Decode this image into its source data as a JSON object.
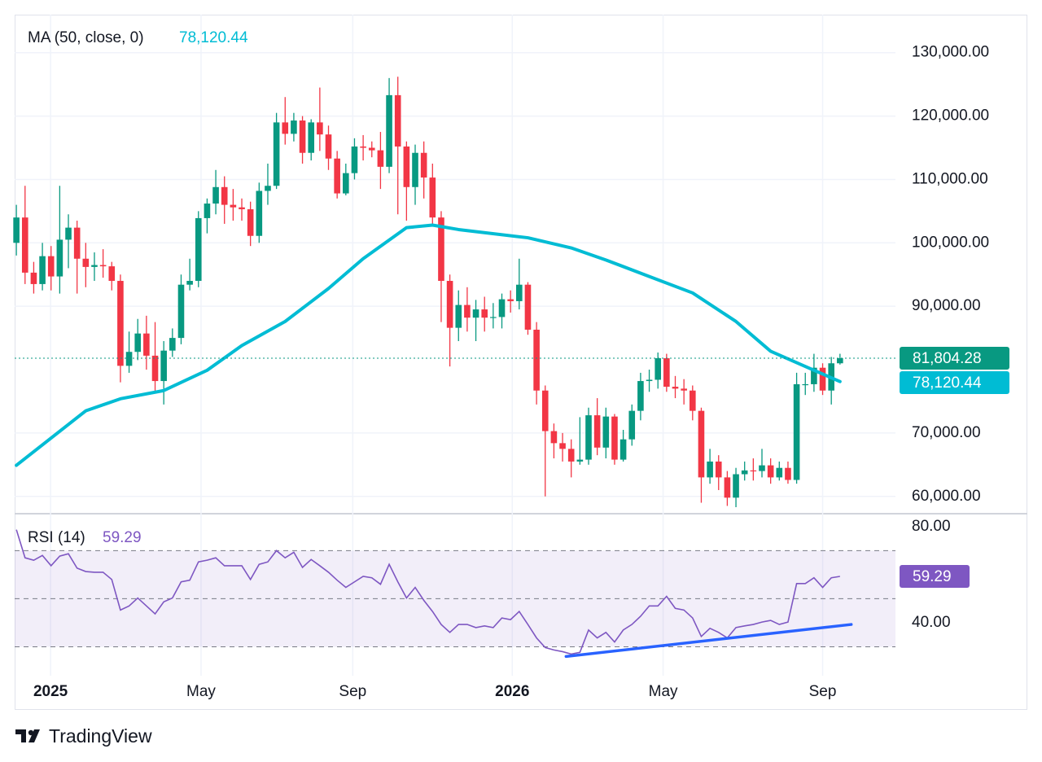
{
  "chart_data": {
    "type": "candlestick",
    "brand": "TradingView",
    "x": [
      0,
      1,
      2,
      3,
      4,
      5,
      6,
      7,
      8,
      9,
      10,
      11,
      12,
      13,
      14,
      15,
      16,
      17,
      18,
      19,
      20,
      21,
      22,
      23,
      24,
      25,
      26,
      27,
      28,
      29,
      30,
      31,
      32,
      33,
      34,
      35,
      36,
      37,
      38,
      39,
      40,
      41,
      42,
      43,
      44,
      45,
      46,
      47,
      48,
      49,
      50,
      51,
      52,
      53,
      54,
      55,
      56,
      57,
      58,
      59,
      60,
      61,
      62,
      63,
      64,
      65,
      66,
      67,
      68,
      69,
      70,
      71,
      72,
      73,
      74,
      75,
      76,
      77,
      78,
      79,
      80,
      81,
      82,
      83,
      84,
      85,
      86,
      87,
      88,
      89,
      90,
      91,
      92,
      93,
      94,
      95
    ],
    "open": [
      100000,
      104000,
      95300,
      93500,
      97900,
      94700,
      100500,
      102400,
      97500,
      96200,
      96500,
      96300,
      94000,
      80600,
      82800,
      85700,
      82200,
      78200,
      83000,
      85000,
      93400,
      94000,
      103900,
      106200,
      108800,
      106000,
      105600,
      105300,
      101100,
      108200,
      109000,
      119000,
      117200,
      119300,
      114200,
      119000,
      117100,
      113300,
      107800,
      111000,
      115200,
      115000,
      114600,
      112000,
      123300,
      115200,
      108800,
      114200,
      110300,
      104000,
      94000,
      86600,
      90200,
      88200,
      89500,
      88200,
      88300,
      91100,
      90800,
      93400,
      86300,
      76700,
      70300,
      68400,
      67500,
      65500,
      65800,
      72800,
      67700,
      72600,
      65800,
      69000,
      73500,
      78200,
      78400,
      81800,
      77300,
      77000,
      76700,
      73500,
      63000,
      65500,
      63000,
      59800,
      63500,
      64100,
      64000,
      64900,
      63000,
      64500,
      62600,
      77700,
      77700,
      80300,
      76700,
      81000
    ],
    "high": [
      106000,
      109000,
      97000,
      100000,
      99500,
      109000,
      104500,
      103500,
      100000,
      98500,
      99000,
      97000,
      95000,
      86000,
      88000,
      88500,
      87500,
      84500,
      86500,
      95000,
      97500,
      105000,
      107000,
      111500,
      110500,
      108500,
      107000,
      106500,
      109500,
      112500,
      120500,
      123000,
      120500,
      120000,
      119500,
      124500,
      118500,
      114500,
      112500,
      116500,
      117000,
      116000,
      117500,
      126000,
      126200,
      116000,
      115500,
      116000,
      112500,
      105000,
      95000,
      92500,
      93000,
      91000,
      91500,
      90500,
      92000,
      92500,
      97500,
      93800,
      87500,
      77500,
      71500,
      70000,
      69000,
      72500,
      74000,
      75500,
      74000,
      73000,
      70500,
      74500,
      79500,
      80000,
      82700,
      82500,
      79000,
      78500,
      77500,
      74000,
      67500,
      66500,
      64000,
      64500,
      65500,
      66000,
      67500,
      66000,
      65500,
      65500,
      79500,
      79500,
      82500,
      81000,
      82000,
      82500
    ],
    "low": [
      98000,
      93500,
      92000,
      92500,
      92500,
      92000,
      96000,
      92000,
      93000,
      94000,
      94500,
      92500,
      78000,
      79500,
      81500,
      80000,
      76500,
      74500,
      82000,
      84000,
      92500,
      93000,
      101500,
      104500,
      103000,
      103500,
      103500,
      99500,
      100000,
      106000,
      108500,
      115500,
      116000,
      112500,
      113000,
      114500,
      111500,
      107000,
      107500,
      110000,
      113000,
      113500,
      108500,
      111000,
      104500,
      103500,
      106000,
      107000,
      103000,
      87500,
      80500,
      84500,
      86000,
      84500,
      86000,
      86500,
      86500,
      89000,
      89500,
      85500,
      74500,
      60000,
      66000,
      65500,
      63000,
      65000,
      65000,
      66500,
      66000,
      65000,
      65500,
      68000,
      72000,
      76500,
      77000,
      76500,
      75500,
      74500,
      72000,
      59000,
      62000,
      61000,
      58500,
      58300,
      62500,
      62500,
      63000,
      62000,
      62500,
      62000,
      62000,
      76000,
      76500,
      76000,
      74500,
      80800
    ],
    "close": [
      104000,
      95300,
      93500,
      97900,
      94700,
      100500,
      102400,
      97500,
      96200,
      96500,
      96300,
      94000,
      80600,
      82800,
      85700,
      82200,
      78200,
      83000,
      85000,
      93400,
      94000,
      103900,
      106200,
      108800,
      106000,
      105600,
      105300,
      101100,
      108200,
      109000,
      119000,
      117200,
      119300,
      114200,
      119000,
      117100,
      113300,
      107800,
      111000,
      115200,
      115000,
      114600,
      112000,
      123300,
      115200,
      108800,
      114200,
      110300,
      104000,
      94000,
      86600,
      90200,
      88200,
      89500,
      88200,
      88300,
      91100,
      90800,
      93400,
      86300,
      76700,
      70300,
      68400,
      67500,
      65500,
      65800,
      72800,
      67700,
      72600,
      65800,
      69000,
      73500,
      78200,
      78400,
      81800,
      77300,
      77000,
      76700,
      73500,
      63000,
      65500,
      63000,
      59800,
      63500,
      64100,
      64000,
      64900,
      63000,
      64500,
      62600,
      77700,
      77700,
      80300,
      76700,
      81000,
      81804.28
    ],
    "last_label": "81,804.28",
    "up_color": "#089981",
    "down_color": "#f23645",
    "xlim": [
      -0.2,
      101.4
    ],
    "xticks": [
      {
        "value": 3.94,
        "label": "2025",
        "bold": true
      },
      {
        "value": 21.3,
        "label": "May"
      },
      {
        "value": 38.8,
        "label": "Sep"
      },
      {
        "value": 57.2,
        "label": "2026",
        "bold": true
      },
      {
        "value": 74.6,
        "label": "May"
      },
      {
        "value": 93.0,
        "label": "Sep"
      }
    ],
    "ylim": [
      57400,
      136000
    ],
    "yticks": [
      {
        "value": 60000,
        "label": "60,000.00"
      },
      {
        "value": 70000,
        "label": "70,000.00"
      },
      {
        "value": 90000,
        "label": "90,000.00"
      },
      {
        "value": 100000,
        "label": "100,000.00"
      },
      {
        "value": 110000,
        "label": "110,000.00"
      },
      {
        "value": 120000,
        "label": "120,000.00"
      },
      {
        "value": 130000,
        "label": "130,000.00"
      }
    ],
    "grid": true,
    "ma": {
      "name": "MA (50, close, 0)",
      "color": "#00bcd4",
      "x": [
        0,
        8,
        12,
        17,
        22,
        26,
        31,
        36,
        40,
        45,
        48,
        51,
        59,
        64,
        68,
        73,
        78,
        83,
        87,
        92,
        95
      ],
      "values": [
        64900,
        73500,
        75400,
        76700,
        79900,
        83800,
        87600,
        92800,
        97500,
        102400,
        102800,
        102100,
        100800,
        99200,
        97300,
        94700,
        92100,
        87600,
        82900,
        79900,
        78120.44
      ],
      "last_label": "78,120.44"
    },
    "rsi": {
      "name": "RSI (14)",
      "color": "#7e57c2",
      "values": [
        78.7,
        67,
        66,
        68,
        63.7,
        67.7,
        68.7,
        62.7,
        61.3,
        61,
        61,
        58,
        45.3,
        47,
        50.3,
        47,
        43.7,
        48.7,
        50.3,
        57,
        57.7,
        65.3,
        66,
        67,
        63.7,
        63.7,
        63.7,
        58,
        64.3,
        65.3,
        70,
        67,
        69.3,
        63,
        66.3,
        63.7,
        61,
        57.7,
        54.7,
        57,
        59.3,
        58.7,
        56,
        64.3,
        57,
        50.3,
        54.7,
        49.3,
        44.7,
        39.3,
        36,
        39.3,
        39.3,
        38,
        38.7,
        38,
        42,
        41.3,
        44.7,
        39.3,
        33.7,
        29.7,
        28.7,
        28,
        27,
        27.7,
        37,
        33.7,
        36,
        32,
        37,
        39.3,
        42.7,
        47,
        47,
        51,
        46,
        45.3,
        42,
        34.3,
        37.7,
        36,
        33.7,
        38,
        38.7,
        39.3,
        40.3,
        41,
        39.3,
        40.3,
        56.3,
        56.3,
        58.7,
        54.7,
        58.7,
        59.29
      ],
      "ylim": [
        18,
        85
      ],
      "yticks": [
        {
          "value": 80,
          "label": "80.00"
        },
        {
          "value": 40,
          "label": "40.00"
        }
      ],
      "levels": [
        70,
        50,
        30
      ],
      "trendline": {
        "color": "#2962ff",
        "x": [
          63.4,
          96.3
        ],
        "values": [
          26,
          39.3
        ]
      }
    }
  }
}
